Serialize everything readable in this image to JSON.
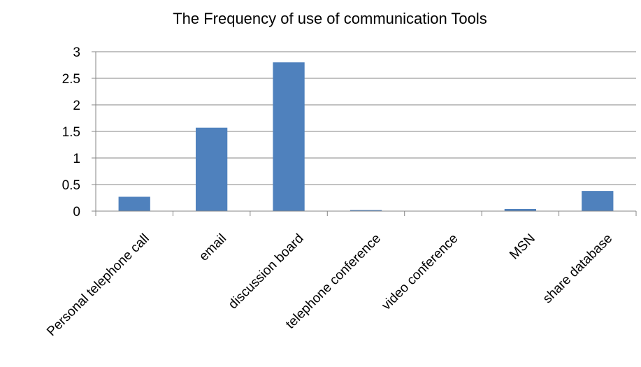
{
  "chart_data": {
    "type": "bar",
    "title": "The Frequency of use of communication Tools",
    "xlabel": "",
    "ylabel": "",
    "categories": [
      "Personal telephone call",
      "email",
      "discussion board",
      "telephone conference",
      "video conference",
      "MSN",
      "share database"
    ],
    "values": [
      0.27,
      1.57,
      2.8,
      0.02,
      0.0,
      0.04,
      0.38
    ],
    "ylim": [
      0,
      3
    ],
    "yticks": [
      "0",
      "0.5",
      "1",
      "1.5",
      "2",
      "2.5",
      "3"
    ],
    "grid": true,
    "legend": "none",
    "bar_color": "#4f81bd",
    "grid_color": "#868686",
    "axis_color": "#868686"
  }
}
